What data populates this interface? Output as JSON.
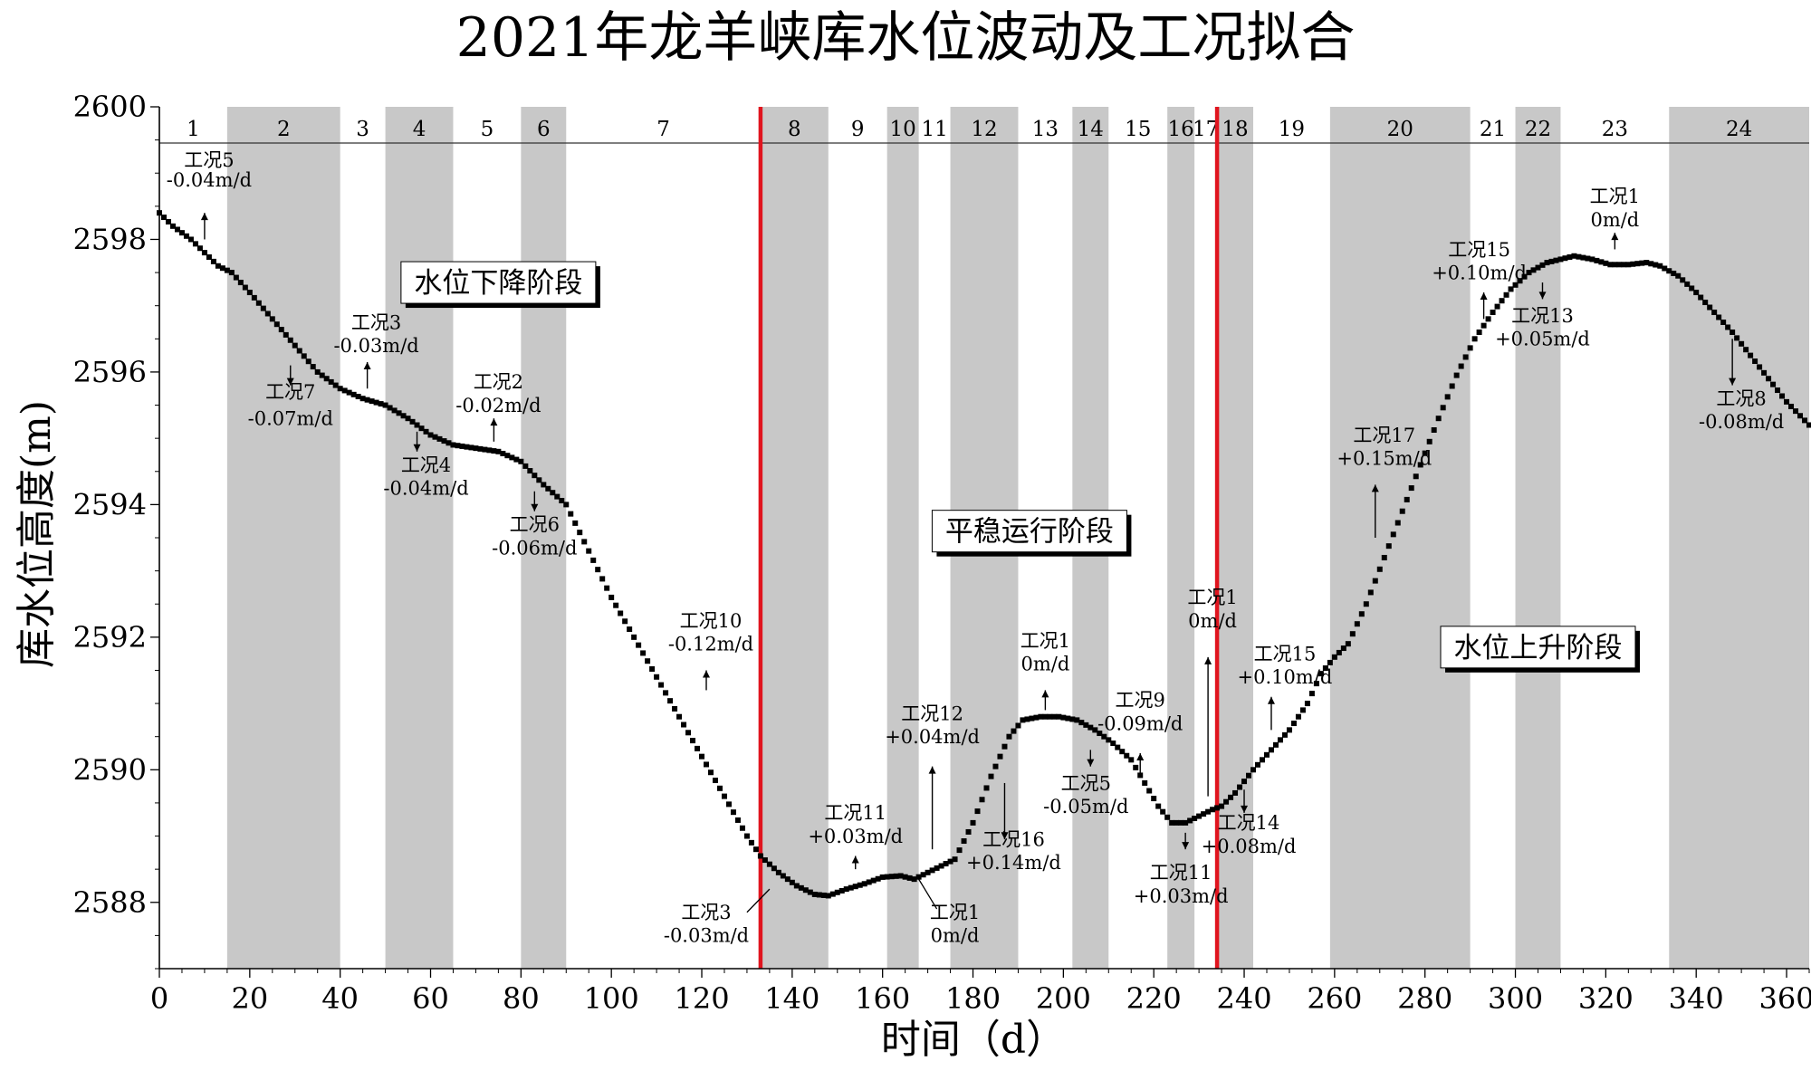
{
  "chart_data": {
    "type": "scatter",
    "title": "2021年龙羊峡库水位波动及工况拟合",
    "xlabel": "时间（d）",
    "ylabel": "库水位高度(m)",
    "xlim": [
      0,
      365
    ],
    "ylim": [
      2587,
      2600
    ],
    "xticks": [
      0,
      20,
      40,
      60,
      80,
      100,
      120,
      140,
      160,
      180,
      200,
      220,
      240,
      260,
      280,
      300,
      320,
      340,
      360
    ],
    "yticks": [
      2588,
      2590,
      2592,
      2594,
      2596,
      2598,
      2600
    ],
    "grid": false,
    "marker_color": "#000000",
    "band_color": "#c8c8c8",
    "red_line_color": "#e0141e",
    "water_level_curve": [
      [
        0,
        2598.4
      ],
      [
        3,
        2598.2
      ],
      [
        7,
        2598.0
      ],
      [
        10,
        2597.8
      ],
      [
        13,
        2597.6
      ],
      [
        16,
        2597.5
      ],
      [
        20,
        2597.2
      ],
      [
        25,
        2596.8
      ],
      [
        30,
        2596.4
      ],
      [
        35,
        2596.0
      ],
      [
        40,
        2595.75
      ],
      [
        45,
        2595.6
      ],
      [
        50,
        2595.5
      ],
      [
        55,
        2595.3
      ],
      [
        60,
        2595.05
      ],
      [
        65,
        2594.9
      ],
      [
        70,
        2594.85
      ],
      [
        75,
        2594.8
      ],
      [
        80,
        2594.65
      ],
      [
        85,
        2594.3
      ],
      [
        90,
        2594.0
      ],
      [
        95,
        2593.3
      ],
      [
        100,
        2592.6
      ],
      [
        105,
        2592.0
      ],
      [
        110,
        2591.4
      ],
      [
        115,
        2590.8
      ],
      [
        120,
        2590.2
      ],
      [
        125,
        2589.6
      ],
      [
        130,
        2589.0
      ],
      [
        133,
        2588.7
      ],
      [
        137,
        2588.45
      ],
      [
        141,
        2588.25
      ],
      [
        145,
        2588.12
      ],
      [
        148,
        2588.1
      ],
      [
        152,
        2588.2
      ],
      [
        156,
        2588.28
      ],
      [
        160,
        2588.38
      ],
      [
        164,
        2588.4
      ],
      [
        167,
        2588.35
      ],
      [
        170,
        2588.45
      ],
      [
        173,
        2588.55
      ],
      [
        176,
        2588.65
      ],
      [
        180,
        2589.2
      ],
      [
        184,
        2589.9
      ],
      [
        188,
        2590.5
      ],
      [
        191,
        2590.75
      ],
      [
        195,
        2590.8
      ],
      [
        199,
        2590.8
      ],
      [
        203,
        2590.75
      ],
      [
        207,
        2590.6
      ],
      [
        211,
        2590.4
      ],
      [
        215,
        2590.15
      ],
      [
        218,
        2589.8
      ],
      [
        221,
        2589.45
      ],
      [
        224,
        2589.2
      ],
      [
        227,
        2589.2
      ],
      [
        230,
        2589.3
      ],
      [
        233,
        2589.4
      ],
      [
        235,
        2589.45
      ],
      [
        238,
        2589.65
      ],
      [
        242,
        2590.0
      ],
      [
        246,
        2590.3
      ],
      [
        250,
        2590.6
      ],
      [
        254,
        2591.0
      ],
      [
        257,
        2591.45
      ],
      [
        260,
        2591.7
      ],
      [
        263,
        2591.9
      ],
      [
        267,
        2592.5
      ],
      [
        271,
        2593.2
      ],
      [
        275,
        2593.9
      ],
      [
        279,
        2594.6
      ],
      [
        283,
        2595.3
      ],
      [
        287,
        2595.95
      ],
      [
        291,
        2596.5
      ],
      [
        295,
        2596.9
      ],
      [
        299,
        2597.25
      ],
      [
        303,
        2597.5
      ],
      [
        307,
        2597.65
      ],
      [
        310,
        2597.7
      ],
      [
        313,
        2597.75
      ],
      [
        317,
        2597.7
      ],
      [
        321,
        2597.62
      ],
      [
        325,
        2597.62
      ],
      [
        329,
        2597.65
      ],
      [
        332,
        2597.6
      ],
      [
        336,
        2597.45
      ],
      [
        340,
        2597.2
      ],
      [
        344,
        2596.9
      ],
      [
        348,
        2596.6
      ],
      [
        352,
        2596.25
      ],
      [
        356,
        2595.9
      ],
      [
        360,
        2595.55
      ],
      [
        365,
        2595.2
      ]
    ],
    "bands": [
      {
        "start": 0,
        "end": 15,
        "shaded": false,
        "label": "1"
      },
      {
        "start": 15,
        "end": 40,
        "shaded": true,
        "label": "2"
      },
      {
        "start": 40,
        "end": 50,
        "shaded": false,
        "label": "3"
      },
      {
        "start": 50,
        "end": 65,
        "shaded": true,
        "label": "4"
      },
      {
        "start": 65,
        "end": 80,
        "shaded": false,
        "label": "5"
      },
      {
        "start": 80,
        "end": 90,
        "shaded": true,
        "label": "6"
      },
      {
        "start": 90,
        "end": 133,
        "shaded": false,
        "label": "7"
      },
      {
        "start": 133,
        "end": 148,
        "shaded": true,
        "label": "8"
      },
      {
        "start": 148,
        "end": 161,
        "shaded": false,
        "label": "9"
      },
      {
        "start": 161,
        "end": 168,
        "shaded": true,
        "label": "10"
      },
      {
        "start": 168,
        "end": 175,
        "shaded": false,
        "label": "11"
      },
      {
        "start": 175,
        "end": 190,
        "shaded": true,
        "label": "12"
      },
      {
        "start": 190,
        "end": 202,
        "shaded": false,
        "label": "13"
      },
      {
        "start": 202,
        "end": 210,
        "shaded": true,
        "label": "14"
      },
      {
        "start": 210,
        "end": 223,
        "shaded": false,
        "label": "15"
      },
      {
        "start": 223,
        "end": 229,
        "shaded": true,
        "label": "16"
      },
      {
        "start": 229,
        "end": 234,
        "shaded": false,
        "label": "17"
      },
      {
        "start": 234,
        "end": 242,
        "shaded": true,
        "label": "18"
      },
      {
        "start": 242,
        "end": 259,
        "shaded": false,
        "label": "19"
      },
      {
        "start": 259,
        "end": 290,
        "shaded": true,
        "label": "20"
      },
      {
        "start": 290,
        "end": 300,
        "shaded": false,
        "label": "21"
      },
      {
        "start": 300,
        "end": 310,
        "shaded": true,
        "label": "22"
      },
      {
        "start": 310,
        "end": 334,
        "shaded": false,
        "label": "23"
      },
      {
        "start": 334,
        "end": 365,
        "shaded": true,
        "label": "24"
      }
    ],
    "red_lines": [
      133,
      234
    ],
    "phase_labels": [
      {
        "text": "水位下降阶段",
        "x": 75,
        "y": 2597.35
      },
      {
        "text": "平稳运行阶段",
        "x": 192.5,
        "y": 2593.6
      },
      {
        "text": "水位上升阶段",
        "x": 305,
        "y": 2591.85
      }
    ],
    "annotations": [
      {
        "name": "工况5",
        "rate": "-0.04m/d",
        "lx": 11,
        "ly1": 2599.1,
        "ly2": 2598.8,
        "ax": 10,
        "a0": 2598.0,
        "a1": 2598.4
      },
      {
        "name": "工况7",
        "rate": "-0.07m/d",
        "lx": 29,
        "ly1": 2595.6,
        "ly2": 2595.2,
        "ax": 29,
        "a0": 2596.1,
        "a1": 2595.8
      },
      {
        "name": "工况3",
        "rate": "-0.03m/d",
        "lx": 48,
        "ly1": 2596.65,
        "ly2": 2596.3,
        "ax": 46,
        "a0": 2595.75,
        "a1": 2596.15
      },
      {
        "name": "工况2",
        "rate": "-0.02m/d",
        "lx": 75,
        "ly1": 2595.75,
        "ly2": 2595.4,
        "ax": 74,
        "a0": 2594.95,
        "a1": 2595.3
      },
      {
        "name": "工况4",
        "rate": "-0.04m/d",
        "lx": 59,
        "ly1": 2594.5,
        "ly2": 2594.15,
        "ax": 57,
        "a0": 2595.1,
        "a1": 2594.8
      },
      {
        "name": "工况6",
        "rate": "-0.06m/d",
        "lx": 83,
        "ly1": 2593.6,
        "ly2": 2593.25,
        "ax": 83,
        "a0": 2594.2,
        "a1": 2593.9
      },
      {
        "name": "工况10",
        "rate": "-0.12m/d",
        "lx": 122,
        "ly1": 2592.15,
        "ly2": 2591.8,
        "ax": 121,
        "a0": 2591.2,
        "a1": 2591.5
      },
      {
        "name": "工况3",
        "rate": "-0.03m/d",
        "lx": 121,
        "ly1": 2587.75,
        "ly2": 2587.4,
        "ax": null
      },
      {
        "name": "工况11",
        "rate": "+0.03m/d",
        "lx": 154,
        "ly1": 2589.25,
        "ly2": 2588.9,
        "ax": 154,
        "a0": 2588.5,
        "a1": 2588.7
      },
      {
        "name": "工况1",
        "rate": "0m/d",
        "lx": 176,
        "ly1": 2587.75,
        "ly2": 2587.4,
        "ax": null
      },
      {
        "name": "工况12",
        "rate": "+0.04m/d",
        "lx": 171,
        "ly1": 2590.75,
        "ly2": 2590.4,
        "ax": 171,
        "a0": 2588.8,
        "a1": 2590.05
      },
      {
        "name": "工况16",
        "rate": "+0.14m/d",
        "lx": 189,
        "ly1": 2588.85,
        "ly2": 2588.5,
        "ax": 187,
        "a0": 2589.8,
        "a1": 2588.95
      },
      {
        "name": "工况1",
        "rate": "0m/d",
        "lx": 196,
        "ly1": 2591.85,
        "ly2": 2591.5,
        "ax": 196,
        "a0": 2590.9,
        "a1": 2591.2
      },
      {
        "name": "工况5",
        "rate": "-0.05m/d",
        "lx": 205,
        "ly1": 2589.7,
        "ly2": 2589.35,
        "ax": 206,
        "a0": 2590.3,
        "a1": 2590.05
      },
      {
        "name": "工况9",
        "rate": "-0.09m/d",
        "lx": 217,
        "ly1": 2590.95,
        "ly2": 2590.6,
        "ax": 217,
        "a0": 2589.95,
        "a1": 2590.25
      },
      {
        "name": "工况11",
        "rate": "+0.03m/d",
        "lx": 226,
        "ly1": 2588.35,
        "ly2": 2588.0,
        "ax": 227,
        "a0": 2589.05,
        "a1": 2588.8
      },
      {
        "name": "工况1",
        "rate": "0m/d",
        "lx": 233,
        "ly1": 2592.5,
        "ly2": 2592.15,
        "ax": 232,
        "a0": 2589.6,
        "a1": 2591.7
      },
      {
        "name": "工况15",
        "rate": "+0.10m/d",
        "lx": 249,
        "ly1": 2591.65,
        "ly2": 2591.3,
        "ax": 246,
        "a0": 2590.6,
        "a1": 2591.1
      },
      {
        "name": "工况14",
        "rate": "+0.08m/d",
        "lx": 241,
        "ly1": 2589.1,
        "ly2": 2588.75,
        "ax": 240,
        "a0": 2589.7,
        "a1": 2589.35
      },
      {
        "name": "工况17",
        "rate": "+0.15m/d",
        "lx": 271,
        "ly1": 2594.95,
        "ly2": 2594.6,
        "ax": 269,
        "a0": 2593.5,
        "a1": 2594.3
      },
      {
        "name": "工况15",
        "rate": "+0.10m/d",
        "lx": 292,
        "ly1": 2597.75,
        "ly2": 2597.4,
        "ax": 293,
        "a0": 2596.8,
        "a1": 2597.2
      },
      {
        "name": "工况13",
        "rate": "+0.05m/d",
        "lx": 306,
        "ly1": 2596.75,
        "ly2": 2596.4,
        "ax": 306,
        "a0": 2597.35,
        "a1": 2597.1
      },
      {
        "name": "工况1",
        "rate": "0m/d",
        "lx": 322,
        "ly1": 2598.55,
        "ly2": 2598.2,
        "ax": 322,
        "a0": 2597.85,
        "a1": 2598.1
      },
      {
        "name": "工况8",
        "rate": "-0.08m/d",
        "lx": 350,
        "ly1": 2595.5,
        "ly2": 2595.15,
        "ax": 348,
        "a0": 2596.5,
        "a1": 2595.8
      }
    ],
    "leaders": [
      {
        "x1": 130,
        "y1": 2587.85,
        "x2": 135,
        "y2": 2588.2
      },
      {
        "x1": 168,
        "y1": 2588.35,
        "x2": 172,
        "y2": 2587.9
      }
    ]
  }
}
